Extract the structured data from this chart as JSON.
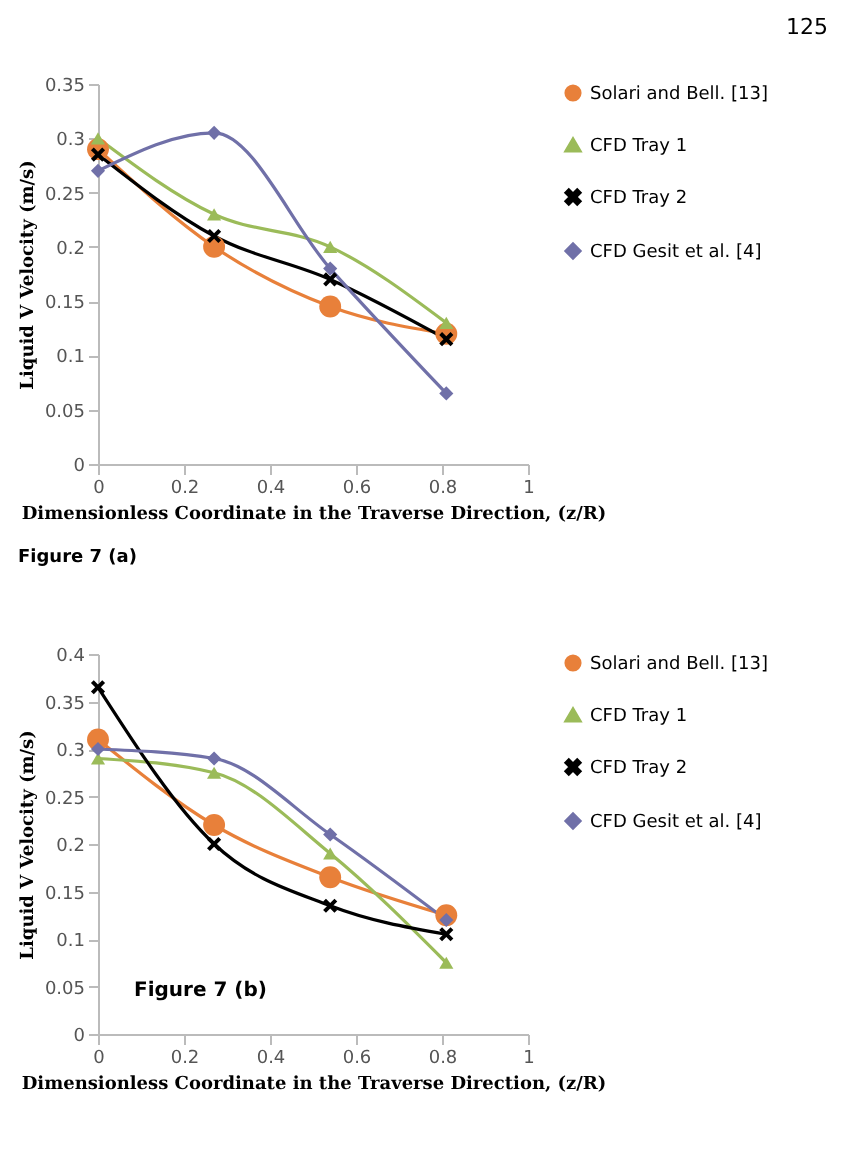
{
  "chart_data": [
    {
      "type": "line",
      "xlabel": "Dimensionless Coordinate in the Traverse Direction, (z/R)",
      "ylabel": "Liquid V Velocity (m/s)",
      "annotations": [
        "125",
        "Figure 7 (a)"
      ],
      "x": [
        0,
        0.27,
        0.54,
        0.81
      ],
      "xlim": [
        0,
        1
      ],
      "xticks": [
        0,
        0.2,
        0.4,
        0.6,
        0.8,
        1
      ],
      "ylim": [
        0,
        0.35
      ],
      "yticks": [
        0,
        0.05,
        0.1,
        0.15,
        0.2,
        0.25,
        0.3,
        0.35
      ],
      "grid": false,
      "legend": "right",
      "series": [
        {
          "name": "Solari and Bell. [13]",
          "color": "#e8803a",
          "marker": "circle",
          "values": [
            0.29,
            0.2,
            0.145,
            0.12
          ]
        },
        {
          "name": "CFD Tray 1",
          "color": "#9bbb59",
          "marker": "triangle",
          "values": [
            0.3,
            0.23,
            0.2,
            0.13
          ]
        },
        {
          "name": "CFD Tray 2",
          "color": "#000000",
          "marker": "cross",
          "values": [
            0.285,
            0.21,
            0.17,
            0.115
          ]
        },
        {
          "name": "CFD Gesit et al. [4]",
          "color": "#7070a8",
          "marker": "diamond",
          "values": [
            0.27,
            0.305,
            0.18,
            0.065
          ]
        }
      ]
    },
    {
      "type": "line",
      "xlabel": "Dimensionless Coordinate in the Traverse Direction, (z/R)",
      "ylabel": "Liquid V Velocity (m/s)",
      "annotations": [
        "Figure 7 (b)"
      ],
      "x": [
        0,
        0.27,
        0.54,
        0.81
      ],
      "xlim": [
        0,
        1
      ],
      "xticks": [
        0,
        0.2,
        0.4,
        0.6,
        0.8,
        1
      ],
      "ylim": [
        0,
        0.4
      ],
      "yticks": [
        0,
        0.05,
        0.1,
        0.15,
        0.2,
        0.25,
        0.3,
        0.35,
        0.4
      ],
      "grid": false,
      "legend": "right",
      "series": [
        {
          "name": "Solari and Bell. [13]",
          "color": "#e8803a",
          "marker": "circle",
          "values": [
            0.31,
            0.22,
            0.165,
            0.125
          ]
        },
        {
          "name": "CFD Tray 1",
          "color": "#9bbb59",
          "marker": "triangle",
          "values": [
            0.29,
            0.275,
            0.19,
            0.075
          ]
        },
        {
          "name": "CFD Tray 2",
          "color": "#000000",
          "marker": "cross",
          "values": [
            0.365,
            0.2,
            0.135,
            0.105
          ]
        },
        {
          "name": "CFD Gesit et al. [4]",
          "color": "#7070a8",
          "marker": "diamond",
          "values": [
            0.3,
            0.29,
            0.21,
            0.12
          ]
        }
      ]
    }
  ]
}
